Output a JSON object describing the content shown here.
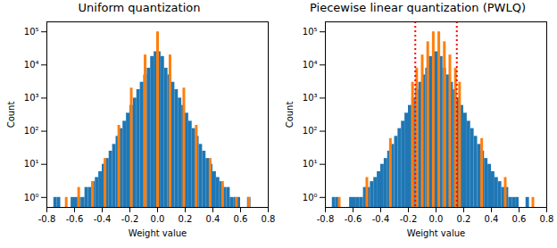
{
  "chart_data": [
    {
      "type": "histogram",
      "title": "Uniform quantization",
      "x_label": "Weight value",
      "y_label": "Count",
      "log": "y",
      "color": "#1f77b4",
      "bins": [
        -0.8,
        -0.775,
        -0.75,
        -0.725,
        -0.7,
        -0.675,
        -0.65,
        -0.625,
        -0.6,
        -0.575,
        -0.55,
        -0.525,
        -0.5,
        -0.475,
        -0.45,
        -0.425,
        -0.4,
        -0.375,
        -0.35,
        -0.325,
        -0.3,
        -0.275,
        -0.25,
        -0.225,
        -0.2,
        -0.175,
        -0.15,
        -0.125,
        -0.1,
        -0.075,
        -0.05,
        -0.025,
        0,
        0.025,
        0.05,
        0.075,
        0.1,
        0.125,
        0.15,
        0.175,
        0.2,
        0.225,
        0.25,
        0.275,
        0.3,
        0.325,
        0.35,
        0.375,
        0.4,
        0.425,
        0.45,
        0.475,
        0.5,
        0.525,
        0.55,
        0.575,
        0.6,
        0.625,
        0.65,
        0.675,
        0.7,
        0.725,
        0.75,
        0.775,
        0.8
      ],
      "counts": [
        0,
        0,
        1,
        1,
        0,
        0,
        0,
        1,
        1,
        1,
        1,
        2,
        2,
        3,
        4,
        6,
        10,
        15,
        25,
        40,
        70,
        120,
        200,
        350,
        600,
        1000,
        1800,
        3000,
        5000,
        8000,
        18000,
        25000,
        25000,
        18000,
        8000,
        5000,
        3000,
        1800,
        1000,
        600,
        350,
        200,
        120,
        70,
        40,
        25,
        15,
        10,
        6,
        4,
        3,
        2,
        2,
        1,
        1,
        1,
        0,
        0,
        1,
        0,
        0,
        0,
        0,
        0
      ],
      "quantized": {
        "color": "#ff7f0e",
        "x": [
          -0.66,
          -0.57,
          -0.47,
          -0.38,
          -0.28,
          -0.19,
          -0.09,
          0,
          0.09,
          0.19,
          0.28,
          0.38,
          0.47,
          0.57,
          0.66
        ],
        "values": [
          1,
          2,
          3,
          15,
          150,
          2000,
          20000,
          100000,
          20000,
          2000,
          150,
          15,
          3,
          1,
          1
        ]
      },
      "xlim": [
        -0.8,
        0.8
      ],
      "xticks": [
        -0.8,
        -0.6,
        -0.4,
        -0.2,
        {
          "value": 0,
          "label": "0.0"
        },
        0.2,
        0.4,
        0.6,
        0.8
      ],
      "ylim": [
        0.5,
        200000
      ],
      "yticks": [
        {
          "value": 1,
          "label": "10⁰"
        },
        {
          "value": 10,
          "label": "10¹"
        },
        {
          "value": 100,
          "label": "10²"
        },
        {
          "value": 1000,
          "label": "10³"
        },
        {
          "value": 10000,
          "label": "10⁴"
        },
        {
          "value": 100000,
          "label": "10⁵"
        }
      ]
    },
    {
      "type": "histogram",
      "title": "Piecewise linear quantization (PWLQ)",
      "x_label": "Weight value",
      "y_label": "Count",
      "log": "y",
      "color": "#1f77b4",
      "bins": [
        -0.8,
        -0.775,
        -0.75,
        -0.725,
        -0.7,
        -0.675,
        -0.65,
        -0.625,
        -0.6,
        -0.575,
        -0.55,
        -0.525,
        -0.5,
        -0.475,
        -0.45,
        -0.425,
        -0.4,
        -0.375,
        -0.35,
        -0.325,
        -0.3,
        -0.275,
        -0.25,
        -0.225,
        -0.2,
        -0.175,
        -0.15,
        -0.125,
        -0.1,
        -0.075,
        -0.05,
        -0.025,
        0,
        0.025,
        0.05,
        0.075,
        0.1,
        0.125,
        0.15,
        0.175,
        0.2,
        0.225,
        0.25,
        0.275,
        0.3,
        0.325,
        0.35,
        0.375,
        0.4,
        0.425,
        0.45,
        0.475,
        0.5,
        0.525,
        0.55,
        0.575,
        0.6,
        0.625,
        0.65,
        0.675,
        0.7,
        0.725,
        0.75,
        0.775,
        0.8
      ],
      "counts": [
        0,
        0,
        1,
        1,
        0,
        0,
        0,
        1,
        1,
        1,
        1,
        2,
        2,
        3,
        4,
        6,
        10,
        15,
        25,
        40,
        70,
        120,
        200,
        350,
        600,
        1000,
        1800,
        3000,
        5000,
        8000,
        18000,
        25000,
        25000,
        18000,
        8000,
        5000,
        3000,
        1800,
        1000,
        600,
        350,
        200,
        120,
        70,
        40,
        25,
        15,
        10,
        6,
        4,
        3,
        2,
        2,
        1,
        1,
        1,
        0,
        0,
        1,
        0,
        0,
        0,
        0,
        0
      ],
      "quantized": {
        "color": "#ff7f0e",
        "x": [
          -0.7,
          -0.5,
          -0.33,
          -0.17,
          -0.14,
          -0.1,
          -0.06,
          -0.02,
          0.02,
          0.06,
          0.1,
          0.14,
          0.17,
          0.33,
          0.5,
          0.7
        ],
        "values": [
          1,
          4,
          60,
          3000,
          8000,
          20000,
          50000,
          100000,
          100000,
          50000,
          20000,
          8000,
          3000,
          60,
          4,
          1
        ]
      },
      "thresholds": {
        "color": "red",
        "line_style": "dotted",
        "x": [
          -0.15,
          0.15
        ]
      },
      "xlim": [
        -0.8,
        0.8
      ],
      "xticks": [
        -0.8,
        -0.6,
        -0.4,
        -0.2,
        {
          "value": 0,
          "label": "0.0"
        },
        0.2,
        0.4,
        0.6,
        0.8
      ],
      "ylim": [
        0.5,
        200000
      ],
      "yticks": [
        {
          "value": 1,
          "label": "10⁰"
        },
        {
          "value": 10,
          "label": "10¹"
        },
        {
          "value": 100,
          "label": "10²"
        },
        {
          "value": 1000,
          "label": "10³"
        },
        {
          "value": 10000,
          "label": "10⁴"
        },
        {
          "value": 100000,
          "label": "10⁵"
        }
      ]
    }
  ]
}
